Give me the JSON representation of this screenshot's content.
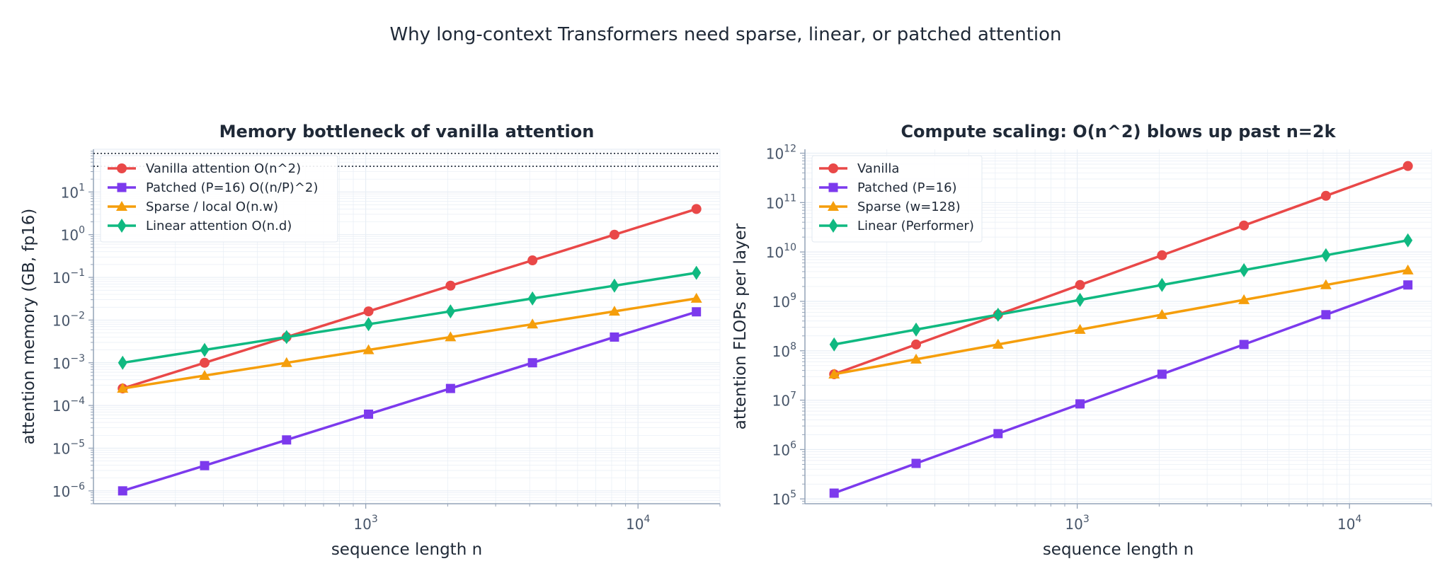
{
  "figure": {
    "title": "Why long-context Transformers need sparse, linear, or patched attention"
  },
  "colors": {
    "vanilla": "#e94848",
    "patched": "#7c3aed",
    "sparse": "#f59e0b",
    "linear": "#10b981",
    "grid": "#e8eef5",
    "axis": "#94a3b8"
  },
  "chart_data": [
    {
      "type": "line",
      "title": "Memory bottleneck of vanilla attention",
      "xlabel": "sequence length n",
      "ylabel": "attention memory (GB, fp16)",
      "xscale": "log",
      "yscale": "log",
      "xlim": [
        100,
        20000
      ],
      "ylim": [
        5e-07,
        100
      ],
      "x_ticks": [
        {
          "exp": "3",
          "value": 1000
        },
        {
          "exp": "4",
          "value": 10000
        }
      ],
      "y_ticks": [
        {
          "exp": "−6",
          "value": 1e-06
        },
        {
          "exp": "−5",
          "value": 1e-05
        },
        {
          "exp": "−4",
          "value": 0.0001
        },
        {
          "exp": "−3",
          "value": 0.001
        },
        {
          "exp": "−2",
          "value": 0.01
        },
        {
          "exp": "−1",
          "value": 0.1
        },
        {
          "exp": "0",
          "value": 1
        },
        {
          "exp": "1",
          "value": 10
        }
      ],
      "grid": true,
      "legend": "upper-left",
      "reference_lines": [
        80,
        40
      ],
      "x": [
        128,
        256,
        512,
        1024,
        2048,
        4096,
        8192,
        16384
      ],
      "series": [
        {
          "name": "Vanilla attention  O(n^2)",
          "key": "vanilla",
          "marker": "circle",
          "values": [
            0.00025,
            0.001,
            0.004,
            0.016,
            0.064,
            0.25,
            1.0,
            4.0
          ]
        },
        {
          "name": "Patched (P=16)  O((n/P)^2)",
          "key": "patched",
          "marker": "square",
          "values": [
            1e-06,
            3.9e-06,
            1.56e-05,
            6.25e-05,
            0.00025,
            0.001,
            0.004,
            0.0156
          ]
        },
        {
          "name": "Sparse / local  O(n.w)",
          "key": "sparse",
          "marker": "triangle",
          "values": [
            0.00025,
            0.0005,
            0.001,
            0.002,
            0.004,
            0.008,
            0.016,
            0.032
          ]
        },
        {
          "name": "Linear attention  O(n.d)",
          "key": "linear",
          "marker": "diamond",
          "values": [
            0.001,
            0.002,
            0.004,
            0.008,
            0.016,
            0.032,
            0.064,
            0.128
          ]
        }
      ]
    },
    {
      "type": "line",
      "title": "Compute scaling: O(n^2) blows up past n=2k",
      "xlabel": "sequence length n",
      "ylabel": "attention FLOPs per layer",
      "xscale": "log",
      "yscale": "log",
      "xlim": [
        100,
        20000
      ],
      "ylim": [
        80000,
        1200000000000.0
      ],
      "x_ticks": [
        {
          "exp": "3",
          "value": 1000
        },
        {
          "exp": "4",
          "value": 10000
        }
      ],
      "y_ticks": [
        {
          "exp": "5",
          "value": 100000.0
        },
        {
          "exp": "6",
          "value": 1000000.0
        },
        {
          "exp": "7",
          "value": 10000000.0
        },
        {
          "exp": "8",
          "value": 100000000.0
        },
        {
          "exp": "9",
          "value": 1000000000.0
        },
        {
          "exp": "10",
          "value": 10000000000.0
        },
        {
          "exp": "11",
          "value": 100000000000.0
        },
        {
          "exp": "12",
          "value": 1000000000000.0
        }
      ],
      "grid": true,
      "legend": "upper-left",
      "reference_lines": [],
      "x": [
        128,
        256,
        512,
        1024,
        2048,
        4096,
        8192,
        16384
      ],
      "series": [
        {
          "name": "Vanilla",
          "key": "vanilla",
          "marker": "circle",
          "values": [
            33500000,
            134000000,
            537000000,
            2150000000,
            8590000000,
            34400000000,
            137000000000,
            550000000000
          ]
        },
        {
          "name": "Patched (P=16)",
          "key": "patched",
          "marker": "square",
          "values": [
            131000,
            524000,
            2100000,
            8400000,
            33500000,
            134000000,
            537000000,
            2150000000
          ]
        },
        {
          "name": "Sparse (w=128)",
          "key": "sparse",
          "marker": "triangle",
          "values": [
            33500000,
            67100000,
            134000000,
            268000000,
            537000000,
            1070000000,
            2150000000,
            4290000000
          ]
        },
        {
          "name": "Linear (Performer)",
          "key": "linear",
          "marker": "diamond",
          "values": [
            134000000,
            268000000,
            537000000,
            1070000000,
            2150000000,
            4290000000,
            8590000000,
            17200000000
          ]
        }
      ]
    }
  ]
}
